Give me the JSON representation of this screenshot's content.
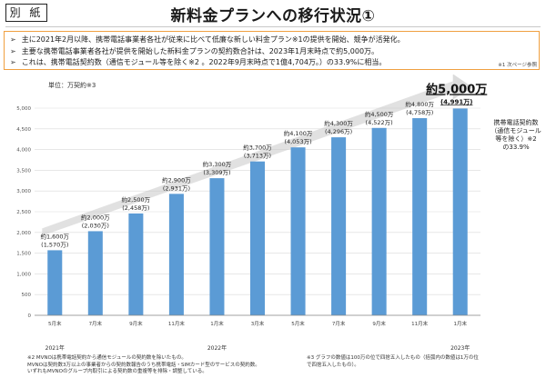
{
  "header": {
    "tag": "別 紙",
    "title": "新料金プランへの移行状況①"
  },
  "bullets": [
    "主に2021年2月以降、携帯電話事業者各社が従来に比べて低廉な新しい料金プラン※1の提供を開始、競争が活発化。",
    "主要な携帯電話事業者各社が提供を開始した新料金プランの契約数合計は、2023年1月末時点で約5,000万。",
    "これは、携帯電話契約数（通信モジュール等を除く※2 。2022年9月末時点で1億4,704万。）の33.9%に相当。"
  ],
  "note1": "※1 次ページ参照",
  "footnotes": {
    "left": [
      "※2 MVNOは携帯電話契約から通信モジュールの契約数を除いたもの。",
      "MVNOは契約数3万以上の事業者からの契約数報告のうち携帯電話・SIMカード型のサービスの契約数。",
      "いずれもMVNOのグループ内取引による契約数の重複等を排除・調整している。"
    ],
    "right": [
      "※3 グラフの数値は100万の位で四捨五入したもの（括弧内の数値は1万の位",
      "で四捨五入したもの）。"
    ]
  },
  "chart_data": {
    "type": "bar",
    "unit_label": "単位：万契約※3",
    "categories": [
      "5月末",
      "7月末",
      "9月末",
      "11月末",
      "1月末",
      "3月末",
      "5月末",
      "7月末",
      "9月末",
      "11月末",
      "1月末"
    ],
    "year_labels": [
      {
        "label": "2021年",
        "category_index": 0
      },
      {
        "label": "2022年",
        "category_index": 4
      },
      {
        "label": "2023年",
        "category_index": 10
      }
    ],
    "values": [
      1570,
      2030,
      2458,
      2931,
      3309,
      3713,
      4053,
      4296,
      4522,
      4758,
      4991
    ],
    "rounded_labels": [
      "約1,600万",
      "約2,000万",
      "約2,500万",
      "約2,900万",
      "約3,300万",
      "約3,700万",
      "約4,100万",
      "約4,300万",
      "約4,500万",
      "約4,800万",
      "約5,000万"
    ],
    "exact_labels": [
      "(1,570万)",
      "(2,030万)",
      "(2,458万)",
      "(2,931万)",
      "(3,309万)",
      "(3,713万)",
      "(4,053万)",
      "(4,296万)",
      "(4,522万)",
      "(4,758万)",
      "(4,991万)"
    ],
    "yticks": [
      0,
      500,
      1000,
      1500,
      2000,
      2500,
      3000,
      3500,
      4000,
      4500,
      5000
    ],
    "ytick_labels": [
      "0",
      "500",
      "1,000",
      "1,500",
      "2,000",
      "2,500",
      "3,000",
      "3,500",
      "4,000",
      "4,500",
      "5,000"
    ],
    "ylim": [
      0,
      5000
    ],
    "grid": true,
    "bar_color": "#5b9bd5",
    "trend_color": "#c8c8c8",
    "side_annotation": [
      "携帯電話契約数",
      "（通信モジュール",
      "等を除く）※2",
      "の33.9%"
    ]
  }
}
